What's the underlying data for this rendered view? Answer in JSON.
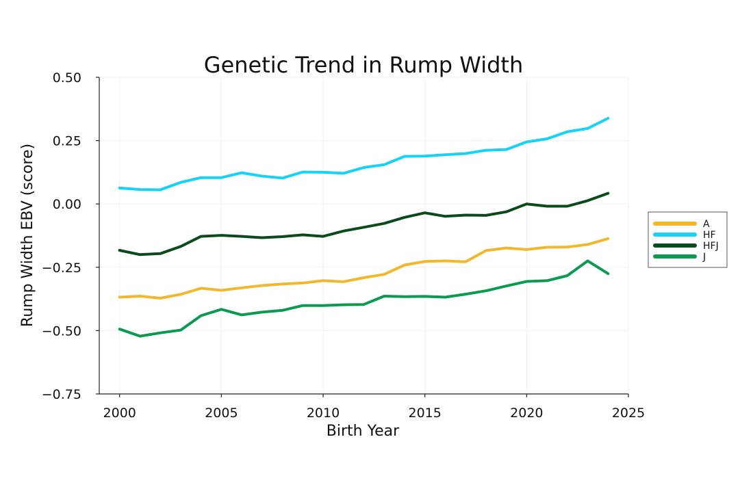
{
  "chart_data": {
    "type": "line",
    "title": "Genetic Trend in Rump Width",
    "xlabel": "Birth Year",
    "ylabel": "Rump Width EBV (score)",
    "xlim": [
      1999,
      2025
    ],
    "ylim": [
      -0.75,
      0.5
    ],
    "xticks": [
      2000,
      2005,
      2010,
      2015,
      2020,
      2025
    ],
    "yticks": [
      -0.75,
      -0.5,
      -0.25,
      0.0,
      0.25,
      0.5
    ],
    "xtick_labels": [
      "2000",
      "2005",
      "2010",
      "2015",
      "2020",
      "2025"
    ],
    "ytick_labels": [
      "−0.75",
      "−0.50",
      "−0.25",
      "0.00",
      "0.25",
      "0.50"
    ],
    "grid": true,
    "legend_position": "right",
    "x": [
      2000,
      2001,
      2002,
      2003,
      2004,
      2005,
      2006,
      2007,
      2008,
      2009,
      2010,
      2011,
      2012,
      2013,
      2014,
      2015,
      2016,
      2017,
      2018,
      2019,
      2020,
      2021,
      2022,
      2023,
      2024
    ],
    "series": [
      {
        "name": "A",
        "color": "#f0b92d",
        "values": [
          -0.368,
          -0.364,
          -0.372,
          -0.357,
          -0.333,
          -0.341,
          -0.331,
          -0.322,
          -0.316,
          -0.312,
          -0.303,
          -0.307,
          -0.291,
          -0.278,
          -0.241,
          -0.227,
          -0.225,
          -0.228,
          -0.184,
          -0.174,
          -0.18,
          -0.171,
          -0.17,
          -0.16,
          -0.137
        ]
      },
      {
        "name": "HF",
        "color": "#13d4f7",
        "values": [
          0.063,
          0.057,
          0.056,
          0.085,
          0.104,
          0.104,
          0.123,
          0.11,
          0.102,
          0.126,
          0.125,
          0.121,
          0.144,
          0.155,
          0.188,
          0.189,
          0.194,
          0.199,
          0.212,
          0.215,
          0.245,
          0.257,
          0.285,
          0.298,
          0.338
        ]
      },
      {
        "name": "HFJ",
        "color": "#0b4a1c",
        "values": [
          -0.183,
          -0.2,
          -0.196,
          -0.168,
          -0.128,
          -0.124,
          -0.128,
          -0.133,
          -0.129,
          -0.122,
          -0.128,
          -0.107,
          -0.092,
          -0.077,
          -0.053,
          -0.035,
          -0.049,
          -0.044,
          -0.045,
          -0.031,
          0.0,
          -0.009,
          -0.009,
          0.013,
          0.042
        ]
      },
      {
        "name": "J",
        "color": "#0a9a52",
        "values": [
          -0.494,
          -0.522,
          -0.509,
          -0.498,
          -0.441,
          -0.416,
          -0.438,
          -0.427,
          -0.42,
          -0.401,
          -0.401,
          -0.398,
          -0.397,
          -0.364,
          -0.366,
          -0.365,
          -0.368,
          -0.356,
          -0.343,
          -0.324,
          -0.306,
          -0.303,
          -0.283,
          -0.225,
          -0.275
        ]
      }
    ]
  }
}
